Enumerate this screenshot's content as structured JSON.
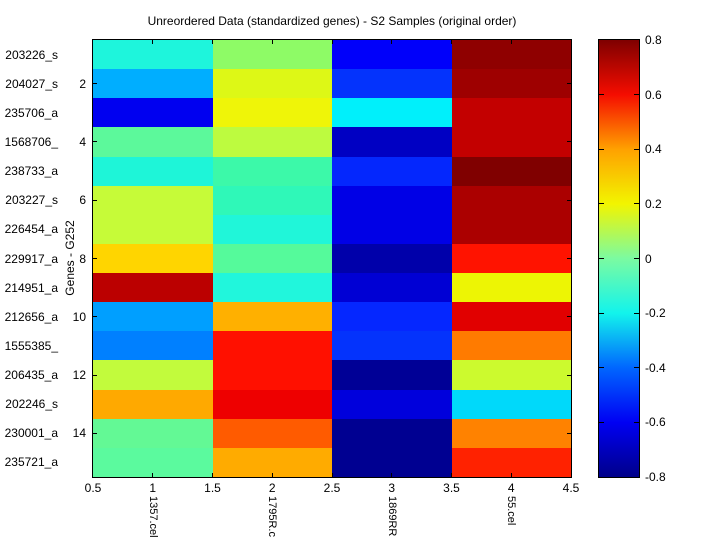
{
  "title": "Unreordered Data (standardized genes) - S2 Samples (original order)",
  "y_axis_label": "Genes - G252",
  "heatmap": {
    "rows": 15,
    "columns": 4,
    "row_labels": [
      "203226_s",
      "204027_s",
      "235706_a",
      "1568706_",
      "238733_a",
      "203227_s",
      "226454_a",
      "229917_a",
      "214951_a",
      "212656_a",
      "1555385_",
      "206435_a",
      "202246_s",
      "230001_a",
      "235721_a"
    ],
    "y_tick_values": [
      2,
      4,
      6,
      8,
      10,
      12,
      14
    ],
    "x_tick_labels": [
      "0.5",
      "1",
      "1.5",
      "2",
      "2.5",
      "3",
      "3.5",
      "4",
      "4.5"
    ],
    "x_tick_values": [
      0.5,
      1,
      1.5,
      2,
      2.5,
      3,
      3.5,
      4,
      4.5
    ],
    "sample_labels": [
      "1357.cel",
      "1795R.c",
      "1869RR",
      "55.cel"
    ],
    "cells": [
      [
        "#1ef5dc",
        "#8efb66",
        "#0000fa",
        "#8f0000"
      ],
      [
        "#00aeff",
        "#ddf816",
        "#0433fc",
        "#9e0000"
      ],
      [
        "#0000f0",
        "#eff508",
        "#00f0fb",
        "#c30000"
      ],
      [
        "#5cf99b",
        "#bdfb3f",
        "#0000c3",
        "#c30000"
      ],
      [
        "#1ef5d8",
        "#3cf9a9",
        "#0427fd",
        "#800000"
      ],
      [
        "#c6fb38",
        "#2ff8b8",
        "#0000e6",
        "#ab0000"
      ],
      [
        "#c6fb38",
        "#20f6d9",
        "#0000e6",
        "#ab0000"
      ],
      [
        "#ffd500",
        "#55fa9b",
        "#0000aa",
        "#ff1300"
      ],
      [
        "#bb0000",
        "#21f6dc",
        "#0000d4",
        "#edf504"
      ],
      [
        "#009fff",
        "#ffb000",
        "#0527ff",
        "#e10000"
      ],
      [
        "#0080ff",
        "#ff1000",
        "#0433fc",
        "#ff7b00"
      ],
      [
        "#c2fb3c",
        "#ff1000",
        "#000096",
        "#ccfa2e"
      ],
      [
        "#ffa900",
        "#ee0000",
        "#0000dc",
        "#00d9fa"
      ],
      [
        "#63f995",
        "#ff5b00",
        "#000091",
        "#ff8200"
      ],
      [
        "#5bfa9e",
        "#ffab00",
        "#000091",
        "#ff2200"
      ]
    ]
  },
  "colorbar": {
    "tick_labels": [
      "0.8",
      "0.6",
      "0.4",
      "0.2",
      "0",
      "-0.2",
      "-0.4",
      "-0.6",
      "-0.8"
    ],
    "gradient_colors_bottom_to_top": [
      "#000089",
      "#0000f3",
      "#0066ff",
      "#12f4ec",
      "#7bfba1",
      "#f2f500",
      "#ffa100",
      "#f50d00",
      "#7f0000"
    ]
  },
  "chart_data": {
    "type": "heatmap",
    "title": "Unreordered Data (standardized genes) - S2 Samples (original order)",
    "ylabel": "Genes - G252",
    "x": [
      "1357.cel",
      "1795R.c",
      "1869RR",
      "55.cel"
    ],
    "y": [
      "203226_s",
      "204027_s",
      "235706_a",
      "1568706_",
      "238733_a",
      "203227_s",
      "226454_a",
      "229917_a",
      "214951_a",
      "212656_a",
      "1555385_",
      "206435_a",
      "202246_s",
      "230001_a",
      "235721_a"
    ],
    "values": [
      [
        -0.15,
        0.05,
        -0.62,
        0.78
      ],
      [
        -0.35,
        0.17,
        -0.58,
        0.76
      ],
      [
        -0.65,
        0.2,
        -0.18,
        0.69
      ],
      [
        0.0,
        0.13,
        -0.72,
        0.69
      ],
      [
        -0.15,
        -0.07,
        -0.58,
        0.81
      ],
      [
        0.12,
        -0.09,
        -0.66,
        0.73
      ],
      [
        0.12,
        -0.14,
        -0.66,
        0.73
      ],
      [
        0.25,
        -0.03,
        -0.75,
        0.55
      ],
      [
        0.7,
        -0.14,
        -0.69,
        0.2
      ],
      [
        -0.37,
        0.3,
        -0.59,
        0.62
      ],
      [
        -0.42,
        0.55,
        -0.58,
        0.4
      ],
      [
        0.12,
        0.55,
        -0.78,
        0.13
      ],
      [
        0.32,
        0.6,
        -0.67,
        -0.2
      ],
      [
        0.0,
        0.45,
        -0.79,
        0.38
      ],
      [
        -0.02,
        0.31,
        -0.79,
        0.52
      ]
    ],
    "colormap": "jet",
    "clim": [
      -0.8,
      0.8
    ],
    "xlim": [
      0.5,
      4.5
    ],
    "grid": false,
    "legend_position": "colorbar-right"
  }
}
